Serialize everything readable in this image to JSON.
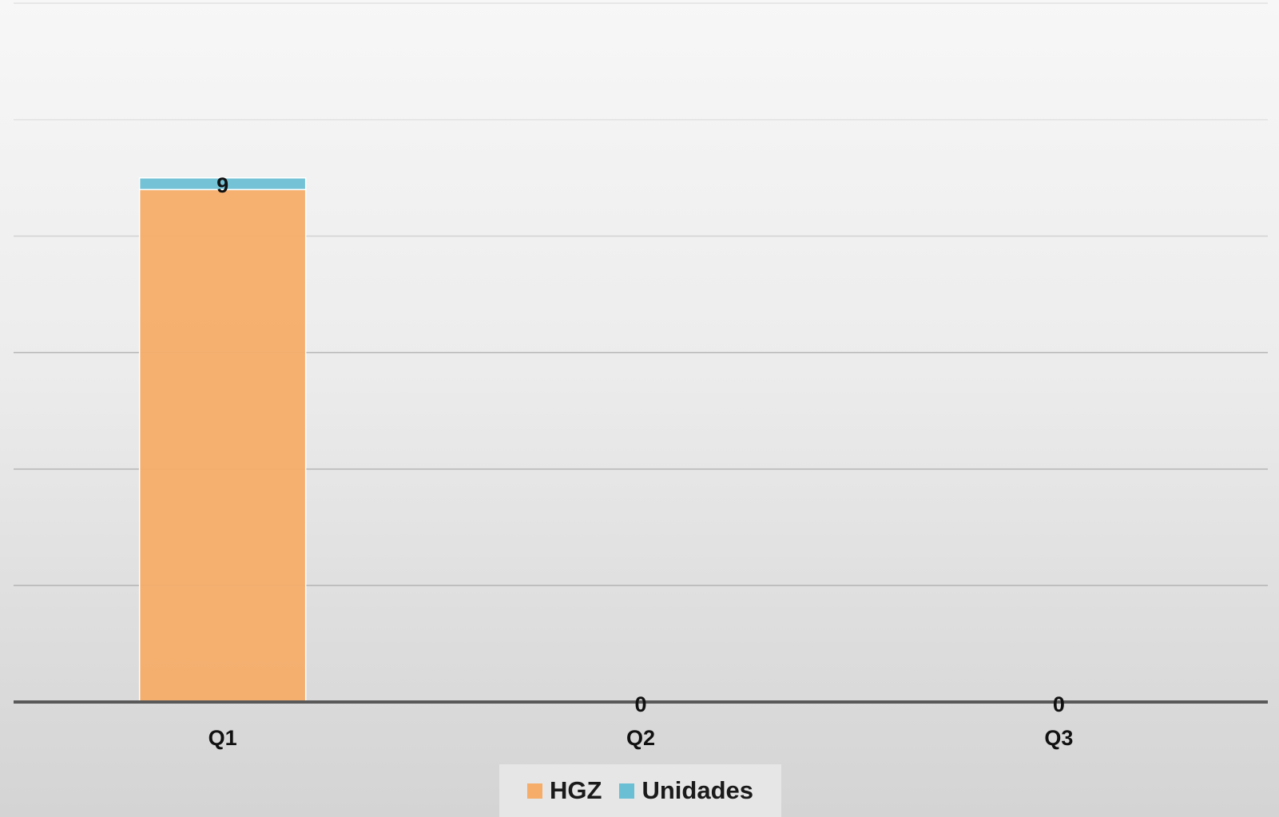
{
  "chart_data": {
    "type": "bar",
    "stacked": true,
    "categories": [
      "Q1",
      "Q2",
      "Q3"
    ],
    "series": [
      {
        "name": "HGZ",
        "values": [
          8.8,
          0,
          0
        ],
        "color": "#f5ad69"
      },
      {
        "name": "Unidades",
        "values": [
          0.2,
          0,
          0
        ],
        "color": "#6bbfd4"
      }
    ],
    "totals": [
      9,
      0,
      0
    ],
    "data_labels": [
      "9",
      "0",
      "0"
    ],
    "ylim": [
      0,
      12
    ],
    "y_gridline_step": 2,
    "grid": true,
    "legend_position": "bottom",
    "title": "",
    "xlabel": "",
    "ylabel": ""
  },
  "legend": {
    "items": [
      {
        "label": "HGZ",
        "color": "#f5ad69"
      },
      {
        "label": "Unidades",
        "color": "#6bbfd4"
      }
    ]
  }
}
